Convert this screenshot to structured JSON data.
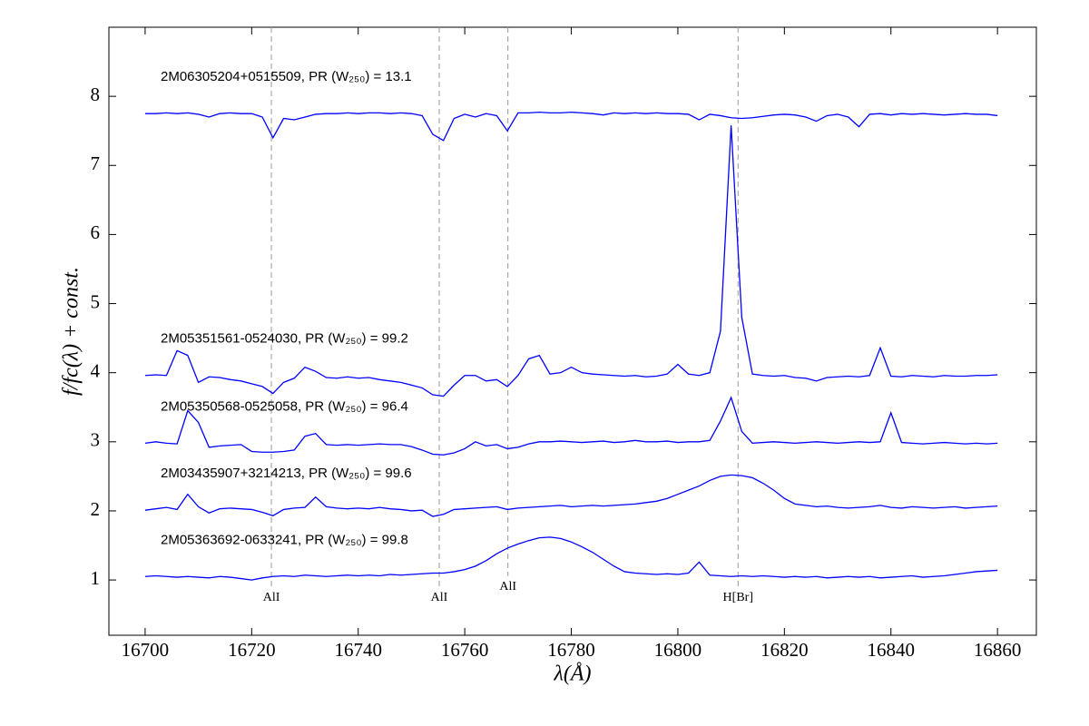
{
  "chart_data": {
    "type": "line",
    "xlabel": "λ(Å)",
    "ylabel": "f/fc(λ) + const.",
    "xlim": [
      16693.2,
      16867.3
    ],
    "ylim": [
      0.2,
      9.0
    ],
    "xticks": [
      16700,
      16720,
      16740,
      16760,
      16780,
      16800,
      16820,
      16840,
      16860
    ],
    "yticks": [
      1,
      2,
      3,
      4,
      5,
      6,
      7,
      8
    ],
    "x": [
      16700,
      16702,
      16704,
      16706,
      16708,
      16710,
      16712,
      16714,
      16716,
      16718,
      16720,
      16722,
      16724,
      16726,
      16728,
      16730,
      16732,
      16734,
      16736,
      16738,
      16740,
      16742,
      16744,
      16746,
      16748,
      16750,
      16752,
      16754,
      16756,
      16758,
      16760,
      16762,
      16764,
      16766,
      16768,
      16770,
      16772,
      16774,
      16776,
      16778,
      16780,
      16782,
      16784,
      16786,
      16788,
      16790,
      16792,
      16794,
      16796,
      16798,
      16800,
      16802,
      16804,
      16806,
      16808,
      16810,
      16812,
      16814,
      16816,
      16818,
      16820,
      16822,
      16824,
      16826,
      16828,
      16830,
      16832,
      16834,
      16836,
      16838,
      16840,
      16842,
      16844,
      16846,
      16848,
      16850,
      16852,
      16854,
      16856,
      16858,
      16860
    ],
    "series": [
      {
        "name": "2M06305204+0515509, PR (W₂₅₀) = 13.1",
        "color": "#0000ff",
        "values": [
          7.75,
          7.75,
          7.76,
          7.75,
          7.76,
          7.74,
          7.7,
          7.75,
          7.76,
          7.75,
          7.75,
          7.7,
          7.4,
          7.68,
          7.66,
          7.7,
          7.74,
          7.75,
          7.75,
          7.76,
          7.75,
          7.76,
          7.76,
          7.75,
          7.76,
          7.75,
          7.72,
          7.45,
          7.36,
          7.68,
          7.74,
          7.7,
          7.75,
          7.72,
          7.5,
          7.76,
          7.76,
          7.77,
          7.76,
          7.76,
          7.77,
          7.76,
          7.75,
          7.73,
          7.76,
          7.75,
          7.76,
          7.75,
          7.76,
          7.75,
          7.75,
          7.74,
          7.66,
          7.74,
          7.72,
          7.69,
          7.68,
          7.69,
          7.71,
          7.73,
          7.74,
          7.73,
          7.7,
          7.64,
          7.72,
          7.74,
          7.7,
          7.56,
          7.74,
          7.75,
          7.73,
          7.75,
          7.74,
          7.75,
          7.74,
          7.73,
          7.74,
          7.75,
          7.74,
          7.74,
          7.72
        ]
      },
      {
        "name": "2M05351561-0524030, PR (W₂₅₀) = 99.2",
        "color": "#0000ff",
        "values": [
          3.96,
          3.97,
          3.96,
          4.32,
          4.25,
          3.86,
          3.94,
          3.93,
          3.9,
          3.88,
          3.84,
          3.8,
          3.7,
          3.86,
          3.92,
          4.08,
          4.02,
          3.93,
          3.92,
          3.94,
          3.92,
          3.93,
          3.9,
          3.88,
          3.86,
          3.82,
          3.78,
          3.68,
          3.66,
          3.82,
          3.96,
          3.96,
          3.88,
          3.9,
          3.8,
          3.96,
          4.2,
          4.25,
          3.98,
          4.0,
          4.08,
          4.0,
          3.98,
          3.97,
          3.96,
          3.95,
          3.96,
          3.94,
          3.95,
          3.98,
          4.12,
          3.98,
          3.96,
          4.0,
          4.6,
          7.58,
          4.8,
          3.98,
          3.96,
          3.95,
          3.96,
          3.93,
          3.92,
          3.88,
          3.93,
          3.94,
          3.95,
          3.94,
          3.96,
          4.36,
          3.95,
          3.94,
          3.96,
          3.95,
          3.94,
          3.96,
          3.95,
          3.95,
          3.96,
          3.96,
          3.97
        ]
      },
      {
        "name": "2M05350568-0525058, PR (W₂₅₀) = 96.4",
        "color": "#0000ff",
        "values": [
          2.98,
          3.0,
          2.98,
          2.97,
          3.45,
          3.28,
          2.92,
          2.94,
          2.95,
          2.96,
          2.86,
          2.85,
          2.85,
          2.86,
          2.88,
          3.08,
          3.12,
          2.96,
          2.95,
          2.96,
          2.95,
          2.96,
          2.97,
          2.96,
          2.96,
          2.93,
          2.88,
          2.82,
          2.81,
          2.84,
          2.9,
          3.0,
          2.94,
          2.96,
          2.9,
          2.92,
          2.97,
          3.0,
          3.0,
          3.01,
          3.0,
          2.99,
          3.0,
          3.01,
          2.99,
          3.0,
          3.02,
          3.0,
          3.0,
          3.01,
          2.99,
          3.0,
          3.0,
          3.02,
          3.3,
          3.64,
          3.15,
          2.98,
          2.99,
          3.0,
          2.99,
          2.98,
          2.99,
          3.0,
          2.99,
          2.98,
          2.99,
          3.0,
          2.99,
          3.0,
          3.42,
          2.99,
          2.98,
          2.97,
          2.98,
          2.99,
          2.98,
          2.97,
          2.98,
          2.97,
          2.98
        ]
      },
      {
        "name": "2M03435907+3214213, PR (W₂₅₀) = 99.6",
        "color": "#0000ff",
        "values": [
          2.01,
          2.03,
          2.05,
          2.02,
          2.24,
          2.06,
          1.97,
          2.03,
          2.04,
          2.03,
          2.02,
          1.98,
          1.93,
          2.02,
          2.04,
          2.05,
          2.2,
          2.06,
          2.04,
          2.03,
          2.04,
          2.03,
          2.05,
          2.03,
          2.02,
          2.0,
          2.01,
          1.92,
          1.95,
          2.02,
          2.03,
          2.04,
          2.05,
          2.06,
          2.02,
          2.04,
          2.05,
          2.06,
          2.07,
          2.08,
          2.06,
          2.07,
          2.08,
          2.07,
          2.08,
          2.09,
          2.1,
          2.12,
          2.14,
          2.18,
          2.24,
          2.3,
          2.36,
          2.44,
          2.5,
          2.52,
          2.51,
          2.48,
          2.4,
          2.3,
          2.18,
          2.1,
          2.08,
          2.06,
          2.07,
          2.05,
          2.04,
          2.05,
          2.06,
          2.08,
          2.05,
          2.04,
          2.06,
          2.05,
          2.04,
          2.05,
          2.06,
          2.04,
          2.05,
          2.06,
          2.07
        ]
      },
      {
        "name": "2M05363692-0633241, PR (W₂₅₀) = 99.8",
        "color": "#0000ff",
        "values": [
          1.05,
          1.06,
          1.05,
          1.04,
          1.05,
          1.04,
          1.03,
          1.05,
          1.04,
          1.02,
          1.0,
          1.03,
          1.05,
          1.06,
          1.05,
          1.07,
          1.06,
          1.05,
          1.06,
          1.07,
          1.06,
          1.07,
          1.06,
          1.08,
          1.07,
          1.08,
          1.09,
          1.1,
          1.1,
          1.12,
          1.15,
          1.2,
          1.28,
          1.38,
          1.46,
          1.52,
          1.57,
          1.61,
          1.62,
          1.6,
          1.55,
          1.48,
          1.4,
          1.3,
          1.2,
          1.12,
          1.1,
          1.09,
          1.08,
          1.09,
          1.08,
          1.1,
          1.26,
          1.07,
          1.06,
          1.05,
          1.06,
          1.05,
          1.06,
          1.05,
          1.04,
          1.05,
          1.04,
          1.05,
          1.03,
          1.04,
          1.05,
          1.04,
          1.05,
          1.03,
          1.04,
          1.05,
          1.06,
          1.04,
          1.05,
          1.06,
          1.08,
          1.1,
          1.12,
          1.13,
          1.14
        ]
      }
    ],
    "markers": [
      {
        "label": "AlI",
        "x": 16723.7,
        "label_y": 0.74
      },
      {
        "label": "AlI",
        "x": 16755.2,
        "label_y": 0.74
      },
      {
        "label": "AlI",
        "x": 16768.1,
        "label_y": 0.9
      },
      {
        "label": "H[Br]",
        "x": 16811.3,
        "label_y": 0.74
      }
    ]
  }
}
